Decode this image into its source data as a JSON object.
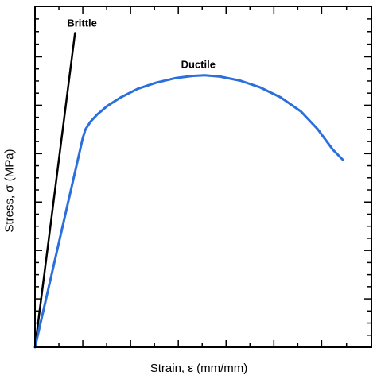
{
  "chart_data": {
    "type": "line",
    "xlabel": "Strain, ε  (mm/mm)",
    "ylabel": "Stress, σ (MPa)",
    "xlim": [
      0,
      100
    ],
    "ylim": [
      0,
      100
    ],
    "grid": false,
    "x_major_ticks": [
      0,
      14.2,
      28.4,
      42.6,
      56.8,
      71.0,
      85.2,
      100
    ],
    "y_major_ticks": [
      0,
      14.2,
      28.4,
      42.6,
      56.8,
      71.0,
      85.2,
      100
    ],
    "tick_labels_shown": false,
    "series": [
      {
        "name": "Brittle",
        "color": "#000000",
        "x": [
          0,
          11.9
        ],
        "y": [
          0,
          92.2
        ]
      },
      {
        "name": "Ductile",
        "color": "#2b6fdc",
        "x": [
          0,
          14.2,
          15.0,
          16.5,
          18.5,
          21.5,
          25.5,
          30.5,
          36,
          42,
          47,
          50.5,
          55,
          61,
          67,
          73,
          79,
          84,
          88.5,
          91.5
        ],
        "y": [
          0,
          61.4,
          63.9,
          66.2,
          68.3,
          70.8,
          73.3,
          75.8,
          77.6,
          79.0,
          79.6,
          79.8,
          79.4,
          78.2,
          76.2,
          73.3,
          69.2,
          64.0,
          58.0,
          55.0
        ]
      }
    ]
  }
}
